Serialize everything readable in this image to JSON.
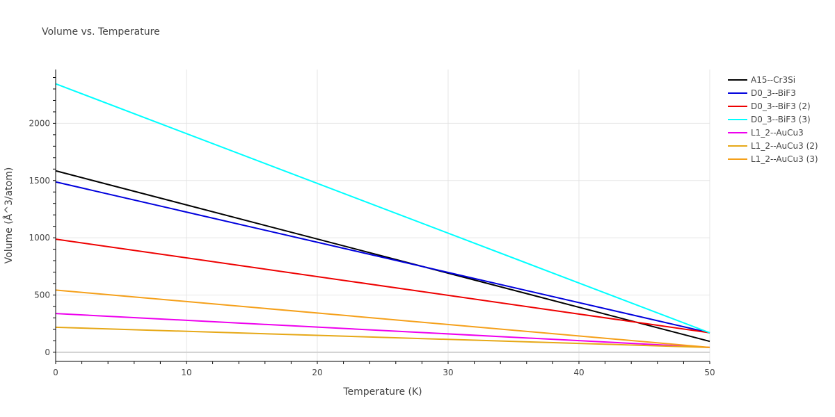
{
  "chart_data": {
    "type": "line",
    "title": "Volume vs. Temperature",
    "xlabel": "Temperature (K)",
    "ylabel": "Volume (Å^3/atom)",
    "xlim": [
      0,
      50
    ],
    "ylim": [
      -80,
      2470
    ],
    "xticks": [
      0,
      10,
      20,
      30,
      40,
      50
    ],
    "yticks": [
      0,
      500,
      1000,
      1500,
      2000
    ],
    "grid": true,
    "legend_position": "top-right",
    "series": [
      {
        "name": "A15--Cr3Si",
        "color": "#000000",
        "x": [
          0,
          50
        ],
        "y": [
          1585,
          95
        ]
      },
      {
        "name": "D0_3--BiF3",
        "color": "#0000dd",
        "x": [
          0,
          50
        ],
        "y": [
          1488,
          170
        ]
      },
      {
        "name": "D0_3--BiF3 (2)",
        "color": "#ee0000",
        "x": [
          0,
          50
        ],
        "y": [
          988,
          170
        ]
      },
      {
        "name": "D0_3--BiF3 (3)",
        "color": "#00ffff",
        "x": [
          0,
          50
        ],
        "y": [
          2345,
          170
        ]
      },
      {
        "name": "L1_2--AuCu3",
        "color": "#ee00ee",
        "x": [
          0,
          50
        ],
        "y": [
          338,
          42
        ]
      },
      {
        "name": "L1_2--AuCu3 (2)",
        "color": "#e6a817",
        "x": [
          0,
          50
        ],
        "y": [
          218,
          42
        ]
      },
      {
        "name": "L1_2--AuCu3 (3)",
        "color": "#f5a01a",
        "x": [
          0,
          50
        ],
        "y": [
          543,
          42
        ]
      }
    ]
  }
}
